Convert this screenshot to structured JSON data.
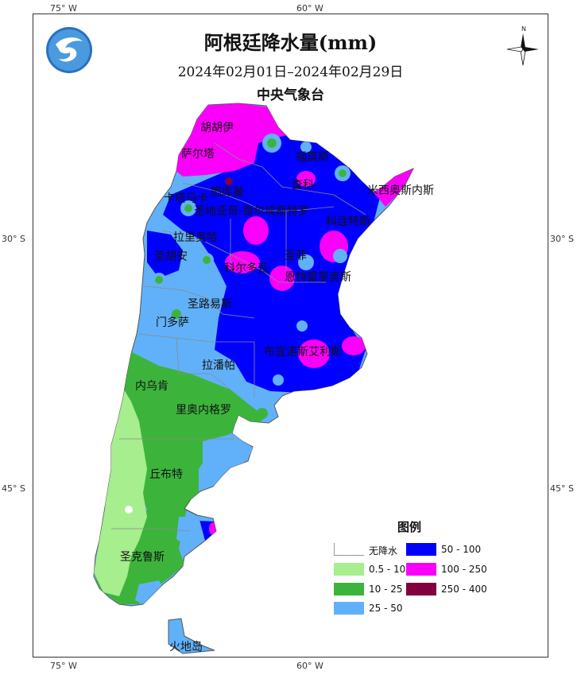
{
  "map": {
    "title": "阿根廷降水量(mm)",
    "date_range": "2024年02月01日–2024年02月29日",
    "organization": "中央气象台",
    "compass_label": "N",
    "graticule": {
      "lon_top": [
        "75° W",
        "60° W"
      ],
      "lon_bottom": [
        "75° W",
        "60° W"
      ],
      "lat_left": [
        "30° S",
        "45° S"
      ],
      "lat_right": [
        "30° S",
        "45° S"
      ]
    },
    "places": [
      "胡胡伊",
      "萨尔塔",
      "福莫斯",
      "查科",
      "米西奥斯内斯",
      "卡塔马卡",
      "图库曼",
      "圣地亚哥-德尔埃斯特罗",
      "科连特斯",
      "拉里奥哈",
      "圣胡安",
      "科尔多瓦",
      "圣菲",
      "恩特雷里奥斯",
      "圣路易斯",
      "门多萨",
      "布宜诺斯艾利斯",
      "拉潘帕",
      "内乌肯",
      "里奥内格罗",
      "丘布特",
      "圣克鲁斯",
      "火地岛"
    ]
  },
  "legend": {
    "title": "图例",
    "items": [
      {
        "label": "无降水",
        "color": "#ffffff"
      },
      {
        "label": "0.5 - 10",
        "color": "#a6ee8e"
      },
      {
        "label": "10  - 25",
        "color": "#3cb43c"
      },
      {
        "label": "25  - 50",
        "color": "#61b1fa"
      },
      {
        "label": "50  - 100",
        "color": "#0000fe"
      },
      {
        "label": "100 - 250",
        "color": "#fa00fa"
      },
      {
        "label": "250 - 400",
        "color": "#800040"
      }
    ]
  },
  "colors": {
    "no_precip": "#ffffff",
    "c0_5_10": "#a6ee8e",
    "c10_25": "#3cb43c",
    "c25_50": "#61b1fa",
    "c50_100": "#0000fe",
    "c100_250": "#fa00fa",
    "c250_400": "#800040",
    "border": "#555555"
  }
}
